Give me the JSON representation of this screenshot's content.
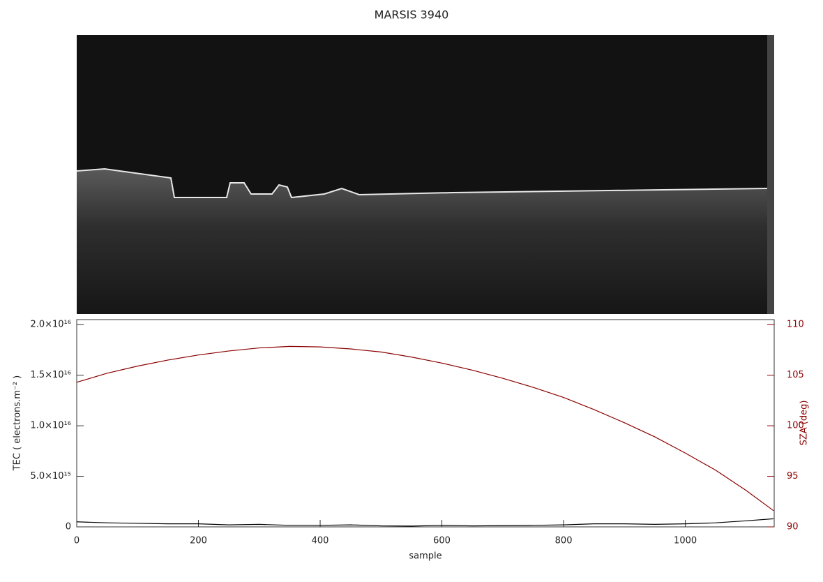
{
  "chart_data": {
    "type": "line",
    "title": "MARSIS 3940",
    "xlabel": "sample",
    "ylabel": "TEC ( electrons.m⁻² )",
    "y2label": "SZA (deg)",
    "x": [
      0,
      50,
      100,
      150,
      200,
      250,
      300,
      350,
      400,
      450,
      500,
      550,
      600,
      650,
      700,
      750,
      800,
      850,
      900,
      950,
      1000,
      1050,
      1100,
      1145
    ],
    "series": [
      {
        "name": "TEC",
        "color": "#000000",
        "values": [
          500000000000000.0,
          400000000000000.0,
          350000000000000.0,
          300000000000000.0,
          300000000000000.0,
          200000000000000.0,
          250000000000000.0,
          150000000000000.0,
          150000000000000.0,
          200000000000000.0,
          100000000000000.0,
          80000000000000.0,
          150000000000000.0,
          100000000000000.0,
          120000000000000.0,
          150000000000000.0,
          200000000000000.0,
          300000000000000.0,
          300000000000000.0,
          250000000000000.0,
          300000000000000.0,
          400000000000000.0,
          600000000000000.0,
          800000000000000.0
        ]
      },
      {
        "name": "SZA",
        "color": "#8b0000",
        "axis": "y2",
        "values": [
          104.3,
          105.2,
          105.9,
          106.5,
          107.0,
          107.4,
          107.7,
          107.85,
          107.8,
          107.6,
          107.3,
          106.8,
          106.2,
          105.5,
          104.7,
          103.8,
          102.8,
          101.6,
          100.3,
          98.9,
          97.3,
          95.6,
          93.6,
          91.6
        ]
      }
    ],
    "xlim": [
      0,
      1146
    ],
    "xticks": [
      0,
      200,
      400,
      600,
      800,
      1000
    ],
    "ylim": [
      0,
      2.05e+16
    ],
    "yticks": [
      0,
      {
        "value": 5000000000000000.0,
        "label": "5.0×10¹⁵"
      },
      {
        "value": 1e+16,
        "label": "1.0×10¹⁶"
      },
      {
        "value": 1.5e+16,
        "label": "1.5×10¹⁶"
      },
      {
        "value": 2e+16,
        "label": "2.0×10¹⁶"
      }
    ],
    "y2lim": [
      90,
      110.5
    ],
    "y2ticks": [
      90,
      95,
      100,
      105,
      110
    ]
  }
}
